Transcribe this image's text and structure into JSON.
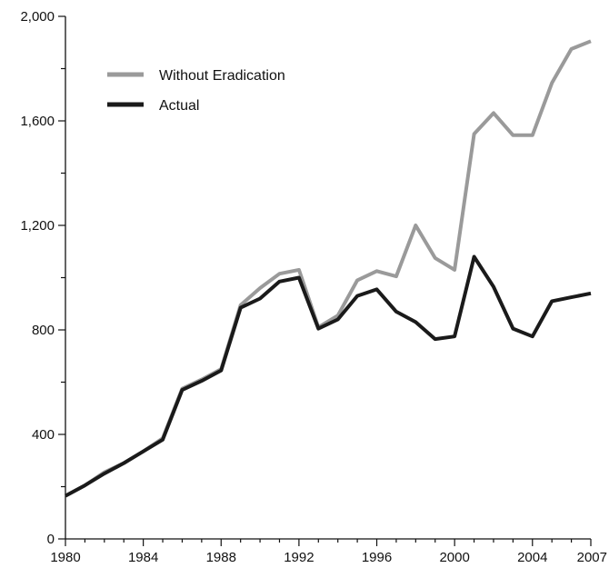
{
  "chart_data": {
    "type": "line",
    "title": "",
    "xlabel": "",
    "ylabel": "",
    "xlim": [
      1980,
      2007
    ],
    "ylim": [
      0,
      2000
    ],
    "x_ticks": [
      1980,
      1984,
      1988,
      1992,
      1996,
      2000,
      2004,
      2007
    ],
    "x_tick_labels": [
      "1980",
      "1984",
      "1988",
      "1992",
      "1996",
      "2000",
      "2004",
      "2007"
    ],
    "y_ticks": [
      0,
      400,
      800,
      1200,
      1600,
      2000
    ],
    "y_tick_labels": [
      "0",
      "400",
      "800",
      "1,200",
      "1,600",
      "2,000"
    ],
    "grid": false,
    "legend_position": "top-left",
    "x": [
      1980,
      1981,
      1982,
      1983,
      1984,
      1985,
      1986,
      1987,
      1988,
      1989,
      1990,
      1991,
      1992,
      1993,
      1994,
      1995,
      1996,
      1997,
      1998,
      1999,
      2000,
      2001,
      2002,
      2003,
      2004,
      2005,
      2006,
      2007
    ],
    "series": [
      {
        "name": "Without Eradication",
        "color": "#9a9a9a",
        "values": [
          165,
          205,
          255,
          290,
          335,
          385,
          575,
          610,
          650,
          895,
          960,
          1015,
          1030,
          810,
          855,
          990,
          1025,
          1005,
          1200,
          1075,
          1030,
          1550,
          1630,
          1545,
          1545,
          1745,
          1875,
          1905
        ]
      },
      {
        "name": "Actual",
        "color": "#1a1a1a",
        "values": [
          165,
          205,
          250,
          290,
          335,
          380,
          570,
          605,
          645,
          885,
          920,
          985,
          1000,
          805,
          840,
          930,
          955,
          870,
          830,
          765,
          775,
          1080,
          965,
          805,
          775,
          910,
          925,
          940
        ]
      }
    ]
  }
}
